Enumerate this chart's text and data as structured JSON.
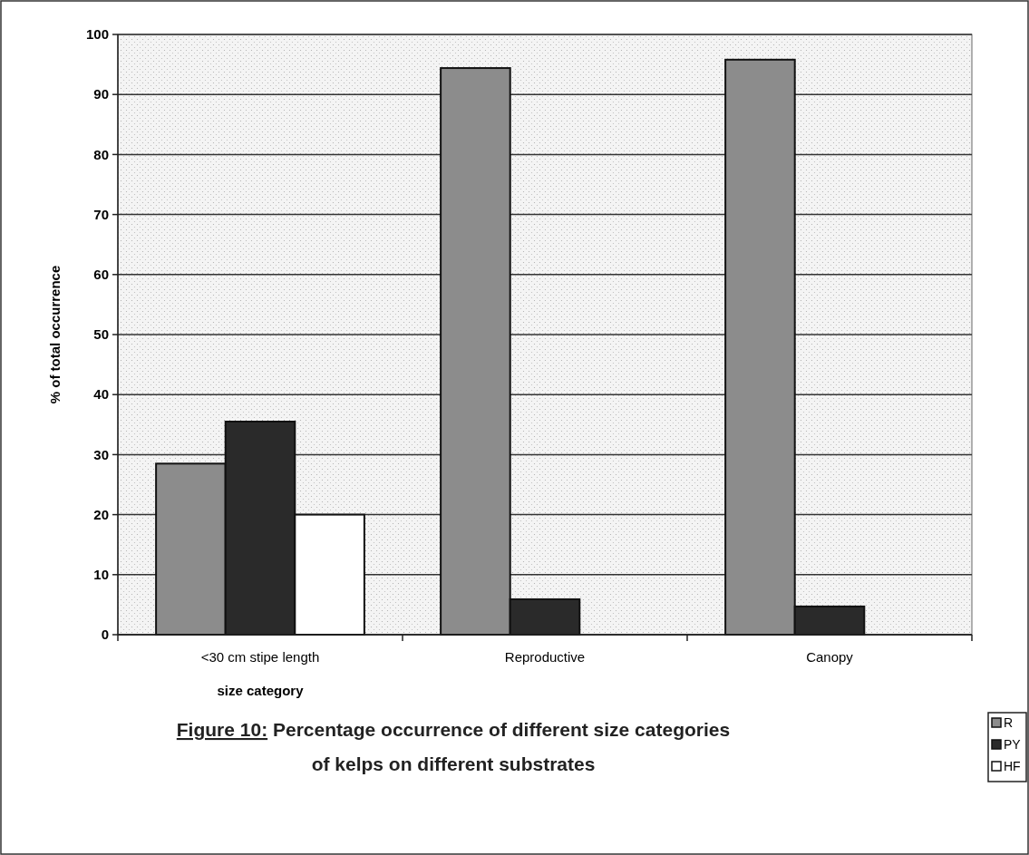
{
  "chart_data": {
    "type": "bar",
    "title": "Figure 10: Percentage occurrence of different size categories of kelps on different substrates",
    "xlabel": "size category",
    "ylabel": "% of total occurrence",
    "categories": [
      "<30 cm stipe length",
      "Reproductive",
      "Canopy"
    ],
    "series": [
      {
        "name": "R",
        "color": "#8c8c8c",
        "values": [
          28.5,
          94.4,
          95.8
        ]
      },
      {
        "name": "PY",
        "color": "#2a2a2a",
        "values": [
          35.5,
          5.9,
          4.7
        ]
      },
      {
        "name": "HF",
        "color": "#ffffff",
        "values": [
          20,
          0,
          0
        ]
      }
    ],
    "ylim": [
      0,
      100
    ],
    "yticks": [
      0,
      10,
      20,
      30,
      40,
      50,
      60,
      70,
      80,
      90,
      100
    ],
    "grid": "y",
    "legend": "bottom right"
  }
}
